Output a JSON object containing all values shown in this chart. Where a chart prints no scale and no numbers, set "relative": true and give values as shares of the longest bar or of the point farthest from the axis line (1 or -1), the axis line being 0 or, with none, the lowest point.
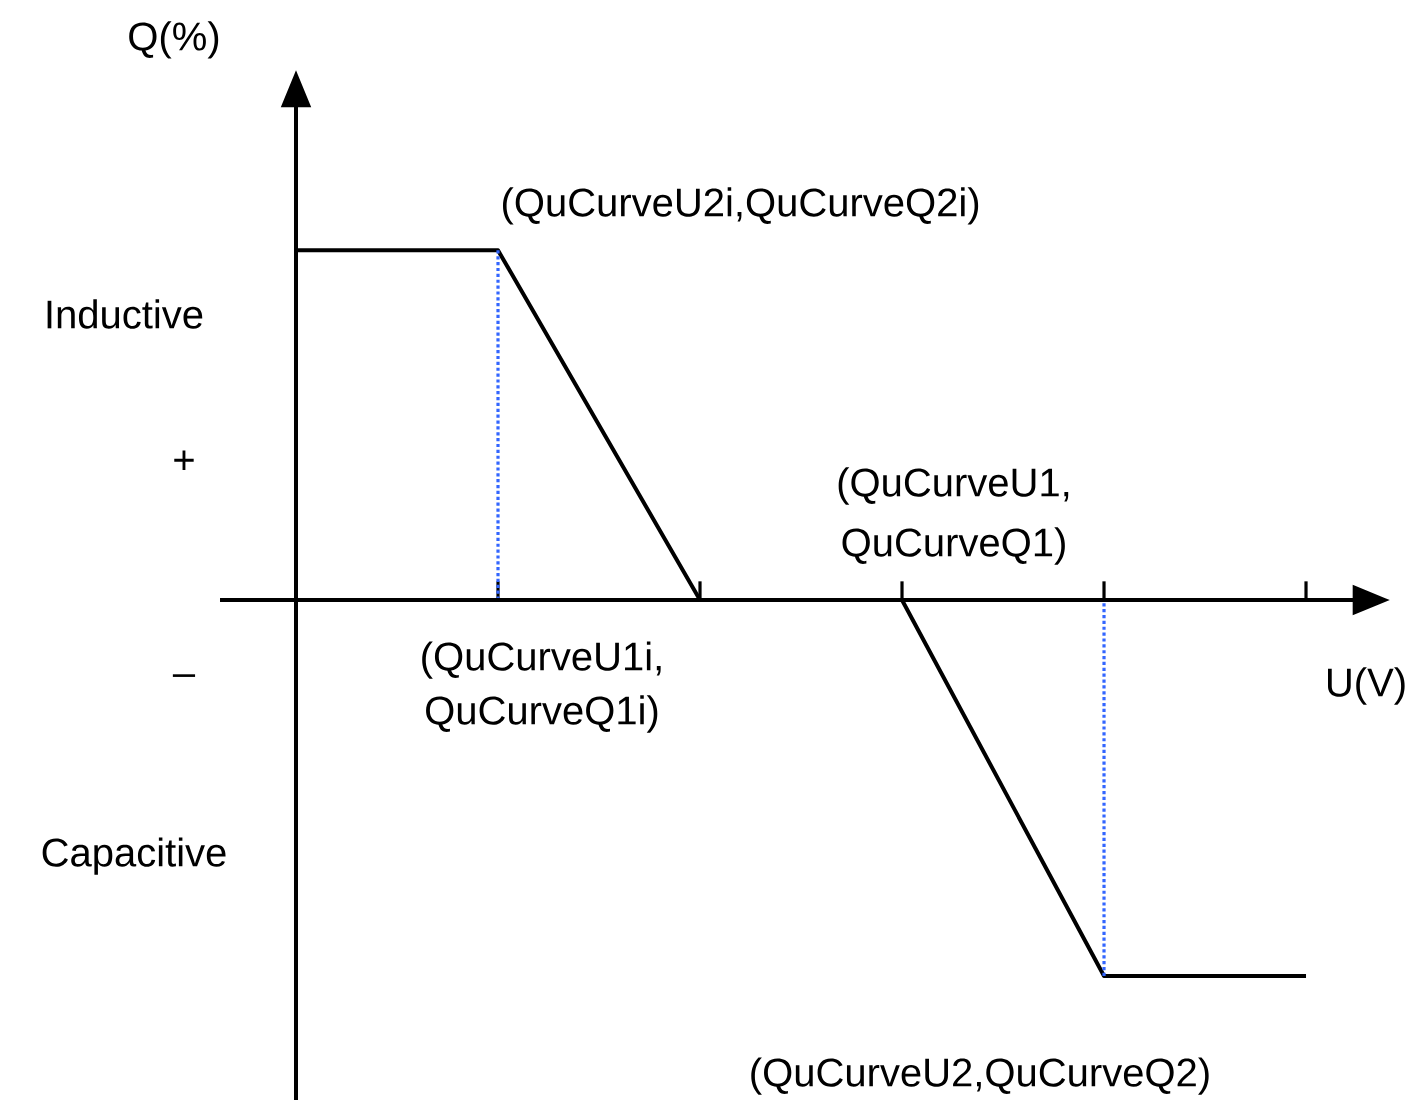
{
  "chart_data": {
    "type": "line",
    "relative": true,
    "xlabel": "U(V)",
    "ylabel": "Q(%)",
    "categories": [
      null,
      null,
      null,
      null,
      null,
      null
    ],
    "series": [
      {
        "color": "#000000",
        "line_style": "solid",
        "values": [
          0.93,
          0.93,
          0,
          0,
          -1,
          -1
        ]
      }
    ],
    "annotations": [
      "(QuCurveU2i,QuCurveQ2i)",
      "(QuCurveU1,",
      "QuCurveQ1)",
      "(QuCurveU1i,",
      "QuCurveQ1i)",
      "(QuCurveU2,QuCurveQ2)",
      "Inductive",
      "+",
      "–",
      "Capacitive"
    ]
  }
}
